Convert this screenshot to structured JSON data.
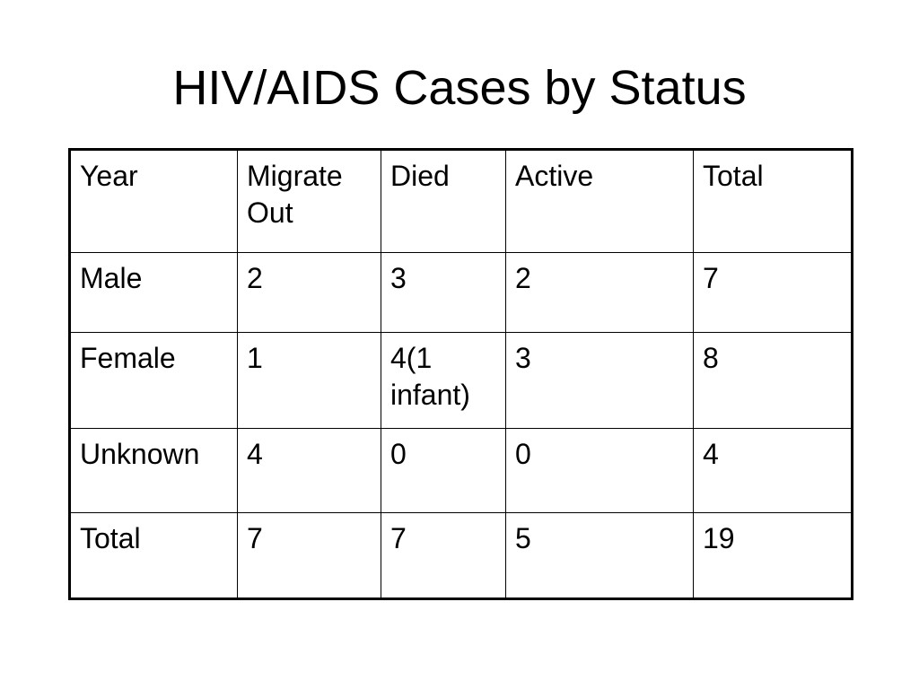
{
  "slide": {
    "title": "HIV/AIDS Cases by Status"
  },
  "table": {
    "headers": [
      "Year",
      "Migrate Out",
      "Died",
      "Active",
      "Total"
    ],
    "rows": [
      [
        "Male",
        "2",
        "3",
        "2",
        "7"
      ],
      [
        "Female",
        "1",
        "4(1 infant)",
        "3",
        "8"
      ],
      [
        "Unknown",
        "4",
        "0",
        "0",
        "4"
      ],
      [
        "Total",
        "7",
        "7",
        "5",
        "19"
      ]
    ]
  }
}
